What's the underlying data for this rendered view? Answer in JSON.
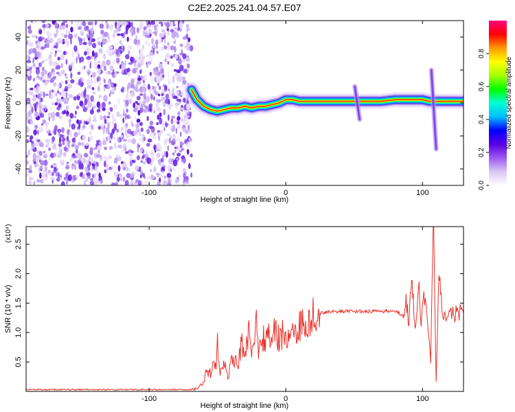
{
  "figure_title": "C2E2.2025.241.04.57.E07",
  "chart_data": [
    {
      "type": "heatmap",
      "title": "C2E2.2025.241.04.57.E07",
      "xlabel": "Height of straight line (km)",
      "ylabel": "Frequency (Hz)",
      "xlim": [
        -190,
        130
      ],
      "ylim": [
        -50,
        50
      ],
      "xticks": [
        -100,
        0,
        100
      ],
      "yticks": [
        -40,
        -20,
        0,
        20,
        40
      ],
      "noise_region_x": [
        -190,
        -69
      ],
      "ridge": {
        "x": [
          -69,
          -65,
          -60,
          -55,
          -50,
          -45,
          -40,
          -35,
          -30,
          -25,
          -20,
          -15,
          -10,
          -5,
          0,
          5,
          10,
          20,
          30,
          40,
          50,
          60,
          70,
          80,
          85,
          90,
          95,
          100,
          105,
          110,
          115,
          120,
          130
        ],
        "y": [
          8,
          2,
          -2,
          -4,
          -5,
          -4,
          -3,
          -3,
          -2,
          -3,
          -2,
          -2,
          -1,
          0,
          2,
          2,
          1,
          1,
          1,
          1,
          1,
          1,
          1,
          2,
          2,
          2,
          2,
          2,
          1,
          1,
          1,
          1,
          1
        ]
      },
      "vertical_streaks": [
        {
          "x": 52,
          "y_range": [
            -10,
            10
          ]
        },
        {
          "x": 108,
          "y_range": [
            -28,
            20
          ]
        }
      ],
      "colorbar": {
        "label": "Normalized spectral amplitude",
        "range": [
          0,
          1
        ],
        "ticks": [
          "0.0",
          "0.2",
          "0.4",
          "0.6",
          "0.8"
        ],
        "colors": [
          "#ffffff",
          "#d9c7f5",
          "#9b59f0",
          "#5a00e6",
          "#0000ff",
          "#00bfff",
          "#00ffd5",
          "#00ff00",
          "#a6ff00",
          "#ffff00",
          "#ff9900",
          "#ff0000",
          "#ff007f"
        ]
      }
    },
    {
      "type": "line",
      "title": "",
      "xlabel": "Height of straight line (km)",
      "ylabel": "SNR (10 * v/v)",
      "y_scale_label": "(x10⁴)",
      "xlim": [
        -190,
        130
      ],
      "ylim": [
        0,
        2.8
      ],
      "xticks": [
        -100,
        0,
        100
      ],
      "yticks": [
        "0.5",
        "1.0",
        "1.5",
        "2.0",
        "2.5"
      ],
      "series": [
        {
          "name": "SNR",
          "color": "#e8302a",
          "x": [
            -190,
            -150,
            -100,
            -70,
            -65,
            -60,
            -58,
            -55,
            -53,
            -51,
            -50,
            -48,
            -45,
            -42,
            -40,
            -38,
            -35,
            -32,
            -30,
            -27,
            -25,
            -22,
            -20,
            -18,
            -15,
            -12,
            -10,
            -8,
            -5,
            -2,
            0,
            5,
            10,
            15,
            20,
            25,
            30,
            40,
            50,
            60,
            70,
            80,
            85,
            88,
            90,
            92,
            95,
            97,
            99,
            100,
            102,
            104,
            106,
            108,
            110,
            112,
            115,
            120,
            125,
            130
          ],
          "y": [
            0.03,
            0.03,
            0.03,
            0.03,
            0.05,
            0.15,
            0.35,
            0.3,
            0.55,
            0.35,
            0.8,
            0.3,
            0.45,
            0.25,
            0.55,
            0.6,
            0.4,
            0.9,
            0.5,
            1.1,
            0.6,
            1.25,
            0.7,
            1.05,
            0.75,
            1.1,
            0.8,
            1.15,
            0.85,
            1.0,
            0.9,
            1.0,
            1.1,
            1.2,
            1.3,
            1.33,
            1.35,
            1.36,
            1.36,
            1.36,
            1.36,
            1.37,
            1.3,
            1.55,
            1.2,
            1.8,
            1.1,
            1.9,
            1.25,
            1.6,
            1.45,
            1.1,
            0.5,
            2.8,
            0.2,
            2.0,
            1.2,
            1.33,
            1.32,
            1.33
          ]
        }
      ]
    }
  ]
}
